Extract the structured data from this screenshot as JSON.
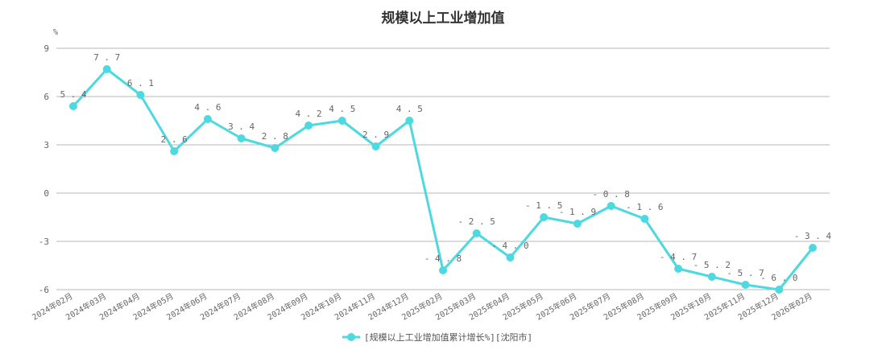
{
  "chart_data": {
    "type": "line",
    "title": "规模以上工业增加值",
    "ylabel": "%",
    "xlabel": "",
    "ylim": [
      -6,
      9
    ],
    "yticks": [
      9,
      6,
      3,
      0,
      -3,
      -6
    ],
    "grid": true,
    "legend_position": "bottom-center",
    "categories": [
      "2024年02月",
      "2024年03月",
      "2024年04月",
      "2024年05月",
      "2024年06月",
      "2024年07月",
      "2024年08月",
      "2024年09月",
      "2024年10月",
      "2024年11月",
      "2024年12月",
      "2025年02月",
      "2025年03月",
      "2025年04月",
      "2025年05月",
      "2025年06月",
      "2025年07月",
      "2025年08月",
      "2025年09月",
      "2025年10月",
      "2025年11月",
      "2025年12月",
      "2026年02月"
    ],
    "series": [
      {
        "name": "[规模以上工业增加值累计增长%][沈阳市]",
        "color": "#4dd9e0",
        "values": [
          5.4,
          7.7,
          6.1,
          2.6,
          4.6,
          3.4,
          2.8,
          4.2,
          4.5,
          2.9,
          4.5,
          -4.8,
          -2.5,
          -4.0,
          -1.5,
          -1.9,
          -0.8,
          -1.6,
          -4.7,
          -5.2,
          -5.7,
          -6.0,
          -3.4
        ]
      }
    ]
  }
}
